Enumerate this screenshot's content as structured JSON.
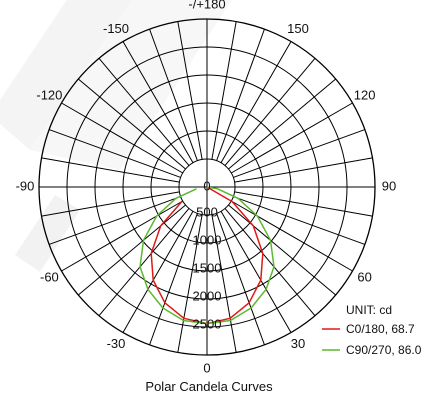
{
  "chart_data": {
    "type": "polar",
    "title": "Polar Candela Curves",
    "unit_label": "UNIT: cd",
    "angle_labels": [
      {
        "deg": 0,
        "text": "0"
      },
      {
        "deg": 30,
        "text": "30"
      },
      {
        "deg": 60,
        "text": "60"
      },
      {
        "deg": 90,
        "text": "90"
      },
      {
        "deg": 120,
        "text": "120"
      },
      {
        "deg": 150,
        "text": "150"
      },
      {
        "deg": 180,
        "text": "-/+180"
      },
      {
        "deg": -150,
        "text": "-150"
      },
      {
        "deg": -120,
        "text": "-120"
      },
      {
        "deg": -90,
        "text": "-90"
      },
      {
        "deg": -60,
        "text": "-60"
      },
      {
        "deg": -30,
        "text": "-30"
      }
    ],
    "radial_ticks": [
      "0",
      "500",
      "1000",
      "1500",
      "2000",
      "2500"
    ],
    "radial_max": 3000,
    "grid_angle_step_deg": 10,
    "series": [
      {
        "name": "C0/180, 68.7",
        "color": "#e01818",
        "angles_deg": [
          0,
          10,
          20,
          30,
          40,
          50,
          60,
          68.7
        ],
        "values": [
          2440,
          2380,
          2200,
          1920,
          1550,
          1080,
          520,
          0
        ]
      },
      {
        "name": "C90/270, 86.0",
        "color": "#5cb82e",
        "angles_deg": [
          0,
          10,
          20,
          30,
          40,
          50,
          60,
          70,
          80,
          86
        ],
        "values": [
          2440,
          2420,
          2300,
          2110,
          1860,
          1480,
          1040,
          590,
          190,
          0
        ]
      }
    ]
  }
}
